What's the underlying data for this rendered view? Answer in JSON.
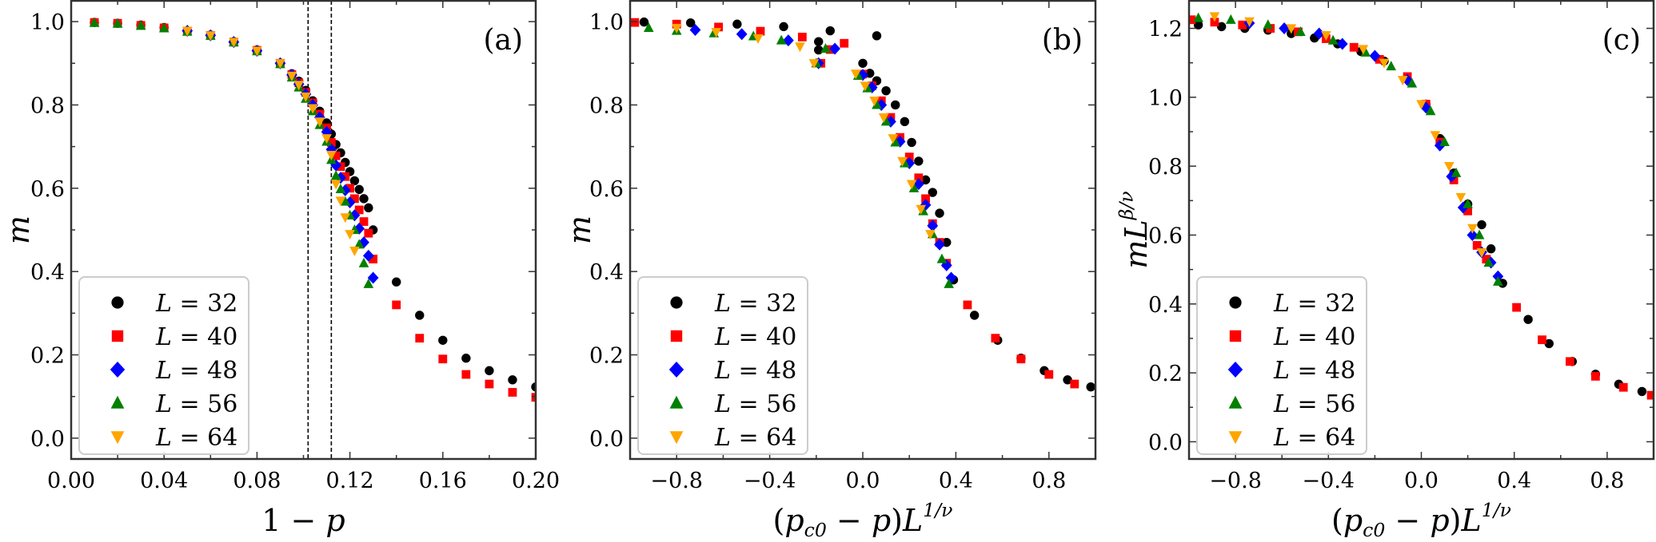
{
  "colors": {
    "L32": "#000000",
    "L40": "#ff0000",
    "L48": "#0000ff",
    "L56": "#008000",
    "L64": "#ffa500"
  },
  "legend": [
    {
      "label": "L = 32",
      "marker": "circle",
      "color_key": "L32"
    },
    {
      "label": "L = 40",
      "marker": "square",
      "color_key": "L40"
    },
    {
      "label": "L = 48",
      "marker": "diamond",
      "color_key": "L48"
    },
    {
      "label": "L = 56",
      "marker": "triangle-up",
      "color_key": "L56"
    },
    {
      "label": "L = 64",
      "marker": "triangle-down",
      "color_key": "L64"
    }
  ],
  "chart_data": [
    {
      "type": "scatter",
      "panel_label": "(a)",
      "xlabel": "1 − p",
      "ylabel": "m",
      "xlim": [
        0.0,
        0.2
      ],
      "ylim": [
        -0.05,
        1.05
      ],
      "xticks": [
        0.0,
        0.04,
        0.08,
        0.12,
        0.16,
        0.2
      ],
      "xtick_labels": [
        "0.00",
        "0.04",
        "0.08",
        "0.12",
        "0.16",
        "0.20"
      ],
      "yticks": [
        0.0,
        0.2,
        0.4,
        0.6,
        0.8,
        1.0
      ],
      "ytick_labels": [
        "0.0",
        "0.2",
        "0.4",
        "0.6",
        "0.8",
        "1.0"
      ],
      "vlines": [
        0.102,
        0.112
      ],
      "legend_position": "lower-left",
      "series": [
        {
          "name": "L = 32",
          "x": [
            0.01,
            0.02,
            0.03,
            0.04,
            0.05,
            0.06,
            0.07,
            0.08,
            0.09,
            0.095,
            0.098,
            0.101,
            0.104,
            0.107,
            0.11,
            0.112,
            0.114,
            0.116,
            0.118,
            0.12,
            0.122,
            0.124,
            0.126,
            0.128,
            0.13,
            0.14,
            0.15,
            0.16,
            0.17,
            0.18,
            0.19,
            0.2
          ],
          "y": [
            0.998,
            0.996,
            0.992,
            0.986,
            0.978,
            0.968,
            0.952,
            0.932,
            0.9,
            0.875,
            0.857,
            0.835,
            0.81,
            0.785,
            0.757,
            0.73,
            0.705,
            0.685,
            0.662,
            0.64,
            0.618,
            0.597,
            0.575,
            0.553,
            0.5,
            0.375,
            0.295,
            0.235,
            0.192,
            0.162,
            0.14,
            0.123
          ]
        },
        {
          "name": "L = 40",
          "x": [
            0.01,
            0.02,
            0.03,
            0.04,
            0.05,
            0.06,
            0.07,
            0.08,
            0.09,
            0.095,
            0.098,
            0.101,
            0.104,
            0.107,
            0.11,
            0.112,
            0.114,
            0.116,
            0.118,
            0.12,
            0.122,
            0.124,
            0.126,
            0.128,
            0.13,
            0.14,
            0.15,
            0.16,
            0.17,
            0.18,
            0.19,
            0.2
          ],
          "y": [
            0.998,
            0.996,
            0.991,
            0.985,
            0.977,
            0.967,
            0.951,
            0.931,
            0.9,
            0.873,
            0.853,
            0.83,
            0.805,
            0.778,
            0.745,
            0.71,
            0.678,
            0.652,
            0.628,
            0.6,
            0.575,
            0.548,
            0.52,
            0.492,
            0.43,
            0.32,
            0.24,
            0.19,
            0.153,
            0.13,
            0.11,
            0.098
          ]
        },
        {
          "name": "L = 48",
          "x": [
            0.05,
            0.06,
            0.07,
            0.08,
            0.09,
            0.095,
            0.098,
            0.101,
            0.104,
            0.107,
            0.11,
            0.112,
            0.114,
            0.116,
            0.118,
            0.12,
            0.122,
            0.124,
            0.126,
            0.128,
            0.13
          ],
          "y": [
            0.978,
            0.967,
            0.951,
            0.93,
            0.9,
            0.872,
            0.85,
            0.826,
            0.8,
            0.77,
            0.735,
            0.693,
            0.655,
            0.625,
            0.595,
            0.566,
            0.535,
            0.503,
            0.47,
            0.438,
            0.385
          ]
        },
        {
          "name": "L = 56",
          "x": [
            0.01,
            0.02,
            0.03,
            0.04,
            0.05,
            0.06,
            0.07,
            0.08,
            0.09,
            0.095,
            0.098,
            0.101,
            0.104,
            0.107,
            0.11,
            0.112,
            0.114,
            0.116,
            0.118,
            0.12,
            0.122,
            0.124,
            0.126,
            0.128
          ],
          "y": [
            0.997,
            0.995,
            0.99,
            0.984,
            0.976,
            0.966,
            0.95,
            0.929,
            0.898,
            0.866,
            0.842,
            0.815,
            0.785,
            0.752,
            0.712,
            0.668,
            0.63,
            0.598,
            0.568,
            0.535,
            0.5,
            0.465,
            0.42,
            0.37
          ]
        },
        {
          "name": "L = 64",
          "x": [
            0.05,
            0.06,
            0.07,
            0.08,
            0.09,
            0.095,
            0.098,
            0.101,
            0.104,
            0.107,
            0.11,
            0.112,
            0.114,
            0.116,
            0.118,
            0.12,
            0.122
          ],
          "y": [
            0.978,
            0.967,
            0.951,
            0.93,
            0.9,
            0.87,
            0.848,
            0.82,
            0.792,
            0.76,
            0.72,
            0.68,
            0.61,
            0.57,
            0.53,
            0.49,
            0.45
          ]
        }
      ]
    },
    {
      "type": "scatter",
      "panel_label": "(b)",
      "xlabel": "(pc0 − p)L^1/ν",
      "ylabel": "m",
      "xlim": [
        -1.0,
        1.0
      ],
      "ylim": [
        -0.05,
        1.05
      ],
      "xticks": [
        -0.8,
        -0.4,
        0.0,
        0.4,
        0.8
      ],
      "xtick_labels": [
        "−0.8",
        "−0.4",
        "0.0",
        "0.4",
        "0.8"
      ],
      "yticks": [
        0.0,
        0.2,
        0.4,
        0.6,
        0.8,
        1.0
      ],
      "ytick_labels": [
        "0.0",
        "0.2",
        "0.4",
        "0.6",
        "0.8",
        "1.0"
      ],
      "legend_position": "lower-left",
      "series": [
        {
          "name": "L = 32",
          "x": [
            -0.94,
            -0.74,
            -0.54,
            -0.34,
            -0.14,
            0.06,
            -0.19,
            -0.19,
            0.0,
            0.03,
            0.06,
            0.1,
            0.14,
            0.18,
            0.21,
            0.24,
            0.27,
            0.3,
            0.33,
            0.36,
            0.39,
            0.48,
            0.58,
            0.68,
            0.78,
            0.88,
            0.98
          ],
          "y": [
            0.999,
            0.997,
            0.994,
            0.988,
            0.978,
            0.966,
            0.952,
            0.932,
            0.9,
            0.876,
            0.858,
            0.834,
            0.8,
            0.76,
            0.71,
            0.665,
            0.62,
            0.59,
            0.54,
            0.47,
            0.38,
            0.295,
            0.235,
            0.192,
            0.162,
            0.14,
            0.123
          ]
        },
        {
          "name": "L = 40",
          "x": [
            -0.98,
            -0.8,
            -0.62,
            -0.44,
            -0.26,
            -0.08,
            -0.14,
            -0.18,
            0.0,
            0.04,
            0.08,
            0.12,
            0.16,
            0.2,
            0.24,
            0.27,
            0.3,
            0.33,
            0.36,
            0.45,
            0.57,
            0.68,
            0.8,
            0.91
          ],
          "y": [
            0.998,
            0.994,
            0.987,
            0.977,
            0.963,
            0.948,
            0.933,
            0.9,
            0.874,
            0.846,
            0.81,
            0.77,
            0.722,
            0.675,
            0.625,
            0.575,
            0.515,
            0.47,
            0.42,
            0.32,
            0.24,
            0.19,
            0.153,
            0.13
          ]
        },
        {
          "name": "L = 48",
          "x": [
            -0.72,
            -0.52,
            -0.32,
            -0.12,
            -0.19,
            0.0,
            0.04,
            0.08,
            0.12,
            0.16,
            0.2,
            0.24,
            0.27,
            0.3,
            0.33,
            0.36,
            0.38
          ],
          "y": [
            0.98,
            0.97,
            0.955,
            0.935,
            0.9,
            0.872,
            0.842,
            0.8,
            0.76,
            0.712,
            0.66,
            0.61,
            0.56,
            0.51,
            0.465,
            0.415,
            0.385
          ]
        },
        {
          "name": "L = 56",
          "x": [
            -0.92,
            -0.8,
            -0.64,
            -0.47,
            -0.35,
            -0.16,
            -0.2,
            -0.02,
            0.02,
            0.06,
            0.1,
            0.14,
            0.18,
            0.22,
            0.26,
            0.3,
            0.34,
            0.37
          ],
          "y": [
            0.985,
            0.978,
            0.972,
            0.965,
            0.955,
            0.935,
            0.9,
            0.87,
            0.84,
            0.8,
            0.76,
            0.71,
            0.66,
            0.6,
            0.545,
            0.49,
            0.43,
            0.37
          ]
        },
        {
          "name": "L = 64",
          "x": [
            -0.8,
            -0.63,
            -0.45,
            -0.27,
            -0.21,
            -0.03,
            0.01,
            0.05,
            0.09,
            0.13,
            0.17,
            0.21,
            0.25,
            0.29
          ],
          "y": [
            0.985,
            0.975,
            0.96,
            0.94,
            0.9,
            0.875,
            0.846,
            0.81,
            0.77,
            0.72,
            0.665,
            0.61,
            0.55,
            0.49
          ]
        }
      ]
    },
    {
      "type": "scatter",
      "panel_label": "(c)",
      "xlabel": "(pc0 − p)L^1/ν",
      "ylabel": "mL^β/ν",
      "xlim": [
        -1.0,
        1.0
      ],
      "ylim": [
        -0.05,
        1.28
      ],
      "xticks": [
        -0.8,
        -0.4,
        0.0,
        0.4,
        0.8
      ],
      "xtick_labels": [
        "−0.8",
        "−0.4",
        "0.0",
        "0.4",
        "0.8"
      ],
      "yticks": [
        0.0,
        0.2,
        0.4,
        0.6,
        0.8,
        1.0,
        1.2
      ],
      "ytick_labels": [
        "0.0",
        "0.2",
        "0.4",
        "0.6",
        "0.8",
        "1.0",
        "1.2"
      ],
      "legend_position": "lower-left",
      "series": [
        {
          "name": "L = 32",
          "x": [
            -0.96,
            -0.86,
            -0.76,
            -0.66,
            -0.56,
            -0.46,
            -0.36,
            -0.26,
            -0.16,
            0.02,
            0.08,
            0.14,
            0.2,
            0.26,
            0.3,
            0.35,
            0.46,
            0.55,
            0.65,
            0.75,
            0.85,
            0.95
          ],
          "y": [
            1.21,
            1.205,
            1.2,
            1.195,
            1.185,
            1.172,
            1.155,
            1.133,
            1.105,
            0.98,
            0.88,
            0.78,
            0.69,
            0.63,
            0.56,
            0.46,
            0.355,
            0.285,
            0.233,
            0.196,
            0.167,
            0.146
          ]
        },
        {
          "name": "L = 40",
          "x": [
            -0.99,
            -0.89,
            -0.77,
            -0.65,
            -0.53,
            -0.41,
            -0.29,
            -0.18,
            -0.06,
            0.02,
            0.08,
            0.14,
            0.2,
            0.24,
            0.28,
            0.41,
            0.52,
            0.64,
            0.75,
            0.87,
            0.99
          ],
          "y": [
            1.225,
            1.218,
            1.21,
            1.2,
            1.19,
            1.17,
            1.145,
            1.11,
            1.06,
            0.98,
            0.87,
            0.76,
            0.67,
            0.57,
            0.53,
            0.39,
            0.296,
            0.233,
            0.19,
            0.158,
            0.135
          ]
        },
        {
          "name": "L = 48",
          "x": [
            -0.74,
            -0.59,
            -0.44,
            -0.34,
            -0.2,
            -0.06,
            0.02,
            0.08,
            0.13,
            0.18,
            0.22,
            0.26,
            0.3,
            0.33
          ],
          "y": [
            1.215,
            1.2,
            1.185,
            1.155,
            1.12,
            1.05,
            0.97,
            0.86,
            0.77,
            0.68,
            0.6,
            0.55,
            0.52,
            0.48
          ]
        },
        {
          "name": "L = 56",
          "x": [
            -0.96,
            -0.82,
            -0.66,
            -0.52,
            -0.38,
            -0.24,
            -0.13,
            -0.04,
            0.04,
            0.1,
            0.15,
            0.2,
            0.25,
            0.29,
            0.33
          ],
          "y": [
            1.23,
            1.225,
            1.21,
            1.19,
            1.165,
            1.13,
            1.09,
            1.04,
            0.96,
            0.87,
            0.78,
            0.69,
            0.6,
            0.52,
            0.465
          ]
        },
        {
          "name": "L = 64",
          "x": [
            -0.89,
            -0.74,
            -0.56,
            -0.41,
            -0.25,
            -0.16,
            -0.08,
            0.0,
            0.06,
            0.12,
            0.17,
            0.22,
            0.26
          ],
          "y": [
            1.235,
            1.22,
            1.2,
            1.18,
            1.14,
            1.1,
            1.05,
            0.98,
            0.89,
            0.8,
            0.71,
            0.62,
            0.55
          ]
        }
      ]
    }
  ]
}
